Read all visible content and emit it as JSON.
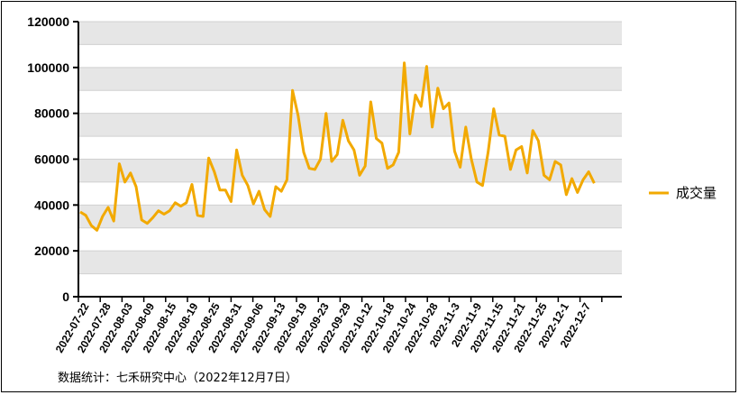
{
  "source_note": "数据统计：七禾研究中心（2022年12月7日）",
  "chart_data": {
    "type": "line",
    "title": "",
    "xlabel": "",
    "ylabel": "",
    "ylim": [
      0,
      120000
    ],
    "yticks": [
      0,
      20000,
      40000,
      60000,
      80000,
      100000,
      120000
    ],
    "grid": true,
    "legend_position": "right",
    "series_color": "#F2A900",
    "tick_labels": [
      "2022-07-22",
      "2022-07-28",
      "2022-08-03",
      "2022-08-09",
      "2022-08-15",
      "2022-08-19",
      "2022-08-25",
      "2022-08-31",
      "2022-09-06",
      "2022-09-13",
      "2022-09-19",
      "2022-09-23",
      "2022-09-29",
      "2022-10-12",
      "2022-10-18",
      "2022-10-24",
      "2022-10-28",
      "2022-11-3",
      "2022-11-9",
      "2022-11-15",
      "2022-11-21",
      "2022-11-25",
      "2022-12-1",
      "2022-12-7"
    ],
    "series": [
      {
        "name": "成交量",
        "values": [
          37000,
          35500,
          31000,
          29000,
          35000,
          39000,
          33000,
          58000,
          50000,
          54000,
          48000,
          33500,
          32000,
          34500,
          37500,
          36000,
          37500,
          41000,
          39500,
          41000,
          49000,
          35500,
          35000,
          60500,
          54500,
          46500,
          46500,
          41500,
          64000,
          53000,
          48500,
          40500,
          46000,
          38000,
          35000,
          48000,
          46000,
          51000,
          90000,
          79000,
          63000,
          56000,
          55500,
          60000,
          80000,
          59000,
          62000,
          77000,
          68000,
          64000,
          53000,
          57000,
          85000,
          69000,
          67000,
          56000,
          57500,
          63000,
          102000,
          71000,
          88000,
          83000,
          100500,
          74000,
          91000,
          82000,
          84500,
          63500,
          56500,
          74000,
          60000,
          50000,
          48500,
          63000,
          82000,
          70500,
          70000,
          55500,
          64000,
          65500,
          54000,
          72500,
          68000,
          53000,
          51000,
          59000,
          57500,
          44500,
          51500,
          45500,
          51000,
          54500,
          49500
        ]
      }
    ]
  }
}
